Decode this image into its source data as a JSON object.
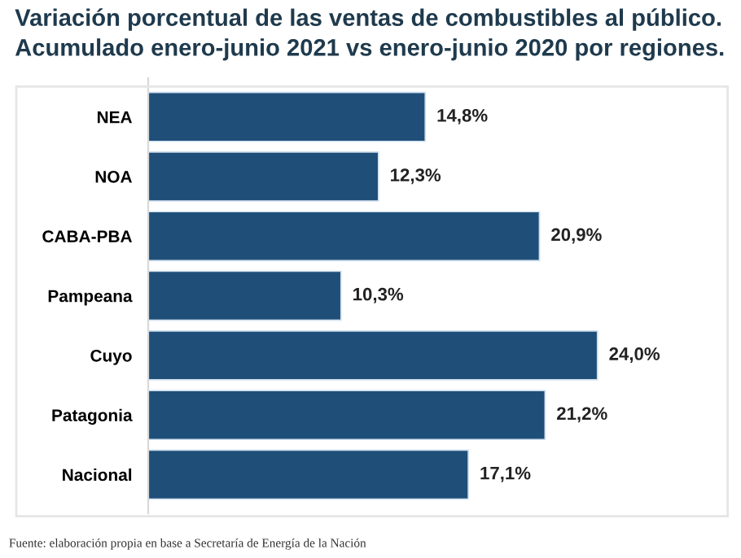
{
  "chart_data": {
    "type": "bar",
    "orientation": "horizontal",
    "title": "Variación porcentual de las ventas de combustibles al público.\nAcumulado enero-junio 2021 vs enero-junio 2020 por regiones.",
    "categories": [
      "NEA",
      "NOA",
      "CABA-PBA",
      "Pampeana",
      "Cuyo",
      "Patagonia",
      "Nacional"
    ],
    "values": [
      14.8,
      12.3,
      20.9,
      10.3,
      24.0,
      21.2,
      17.1
    ],
    "value_labels": [
      "14,8%",
      "12,3%",
      "20,9%",
      "10,3%",
      "24,0%",
      "21,2%",
      "17,1%"
    ],
    "color": "#1f4e79",
    "tick_labels": "y",
    "grid": false,
    "legend": false,
    "annotations": [
      "Fuente: elaboración propia en base a Secretaría de Energía de la Nación"
    ]
  }
}
